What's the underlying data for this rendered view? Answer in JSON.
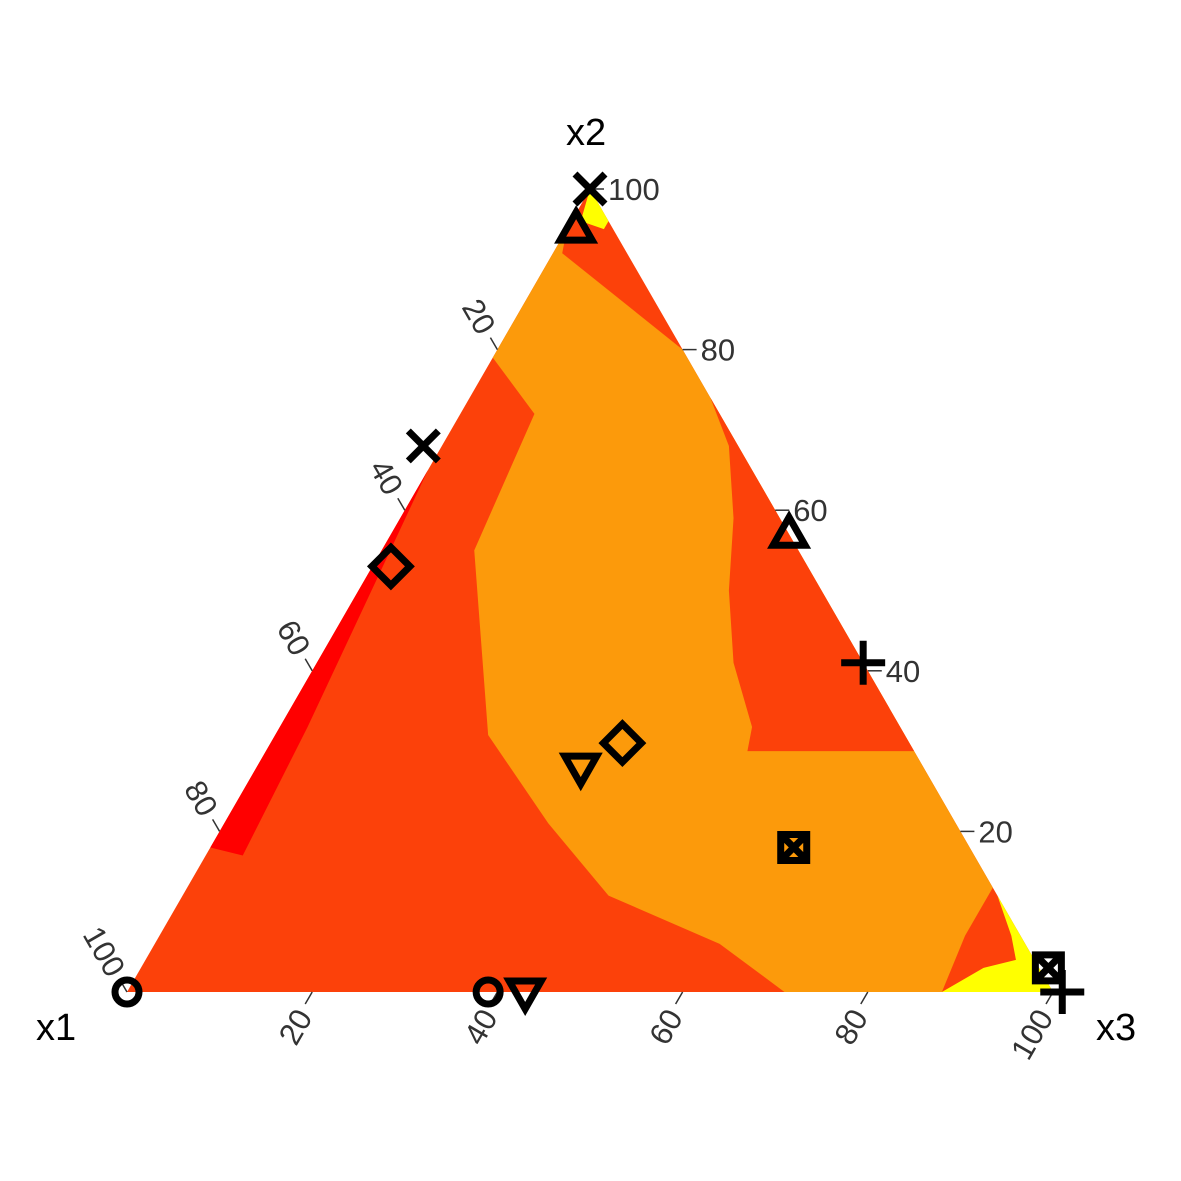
{
  "chart_data": {
    "type": "ternary-contour",
    "axes": {
      "x1": "x1",
      "x2": "x2",
      "x3": "x3"
    },
    "ticks": [
      "20",
      "40",
      "60",
      "80",
      "100"
    ],
    "colors": {
      "yellow": "#ffff00",
      "orange": "#fc9a0b",
      "orange_red": "#fc410a",
      "red": "#ff0000"
    },
    "contour_bands": [
      {
        "name": "red",
        "color": "#ff0000",
        "points": [
          [
            0.82,
            0.18,
            0
          ],
          [
            0.66,
            0.34,
            0
          ],
          [
            0.52,
            0.48,
            0
          ],
          [
            0.35,
            0.65,
            0
          ],
          [
            0.64,
            0.33,
            0.03
          ],
          [
            0.79,
            0.17,
            0.04
          ]
        ]
      },
      {
        "name": "orange",
        "color": "#fc9a0b",
        "points": [
          [
            0.21,
            0.79,
            0
          ],
          [
            0.05,
            0.95,
            0
          ],
          [
            0.07,
            0.92,
            0.01
          ],
          [
            0,
            0.8,
            0.2
          ],
          [
            0,
            0.5,
            0.5
          ],
          [
            0,
            0.2,
            0.8
          ],
          [
            0,
            0.13,
            0.87
          ],
          [
            0.06,
            0.07,
            0.87
          ],
          [
            0.12,
            0,
            0.88
          ],
          [
            0.29,
            0,
            0.71
          ],
          [
            0.33,
            0.06,
            0.61
          ],
          [
            0.42,
            0.12,
            0.46
          ],
          [
            0.44,
            0.21,
            0.35
          ],
          [
            0.45,
            0.32,
            0.23
          ],
          [
            0.35,
            0.55,
            0.1
          ],
          [
            0.2,
            0.72,
            0.08
          ]
        ]
      },
      {
        "name": "orange_red_right",
        "color": "#fc410a",
        "points": [
          [
            0,
            0.74,
            0.26
          ],
          [
            0.01,
            0.68,
            0.31
          ],
          [
            0.05,
            0.59,
            0.36
          ],
          [
            0.1,
            0.5,
            0.4
          ],
          [
            0.14,
            0.41,
            0.45
          ],
          [
            0.16,
            0.33,
            0.51
          ],
          [
            0.18,
            0.3,
            0.52
          ],
          [
            0,
            0.3,
            0.7
          ]
        ]
      },
      {
        "name": "yellow_top",
        "color": "#ffff00",
        "points": [
          [
            0,
            1,
            0
          ],
          [
            0.03,
            0.96,
            0.01
          ],
          [
            0.01,
            0.95,
            0.04
          ],
          [
            0,
            0.96,
            0.04
          ]
        ]
      },
      {
        "name": "yellow_right",
        "color": "#ffff00",
        "points": [
          [
            0,
            0.12,
            0.88
          ],
          [
            0.01,
            0.07,
            0.92
          ],
          [
            0.02,
            0.04,
            0.94
          ],
          [
            0.06,
            0.03,
            0.91
          ],
          [
            0.12,
            0,
            0.88
          ],
          [
            0,
            0,
            1
          ]
        ]
      }
    ],
    "points": [
      {
        "marker": "circle",
        "x1": 1.0,
        "x2": 0.0,
        "x3": 0.0
      },
      {
        "marker": "circle",
        "x1": 0.61,
        "x2": 0.0,
        "x3": 0.39
      },
      {
        "marker": "triangle-down",
        "x1": 0.57,
        "x2": 0.0,
        "x3": 0.43
      },
      {
        "marker": "triangle-down",
        "x1": 0.37,
        "x2": 0.28,
        "x3": 0.35
      },
      {
        "marker": "diamond",
        "x1": 0.31,
        "x2": 0.31,
        "x3": 0.38
      },
      {
        "marker": "diamond",
        "x1": 0.45,
        "x2": 0.53,
        "x3": 0.02
      },
      {
        "marker": "x",
        "x1": 0.34,
        "x2": 0.68,
        "x3": -0.02
      },
      {
        "marker": "x",
        "x1": 0.0,
        "x2": 1.0,
        "x3": 0.0
      },
      {
        "marker": "triangle-up",
        "x1": 0.04,
        "x2": 0.95,
        "x3": 0.01
      },
      {
        "marker": "triangle-up",
        "x1": 0.0,
        "x2": 0.57,
        "x3": 0.43
      },
      {
        "marker": "plus",
        "x1": 0.0,
        "x2": 0.41,
        "x3": 0.59
      },
      {
        "marker": "plus",
        "x1": -0.01,
        "x2": 0.0,
        "x3": 1.01
      },
      {
        "marker": "square-x",
        "x1": 0.19,
        "x2": 0.18,
        "x3": 0.63
      },
      {
        "marker": "square-x",
        "x1": -0.01,
        "x2": 0.03,
        "x3": 0.98
      }
    ]
  }
}
